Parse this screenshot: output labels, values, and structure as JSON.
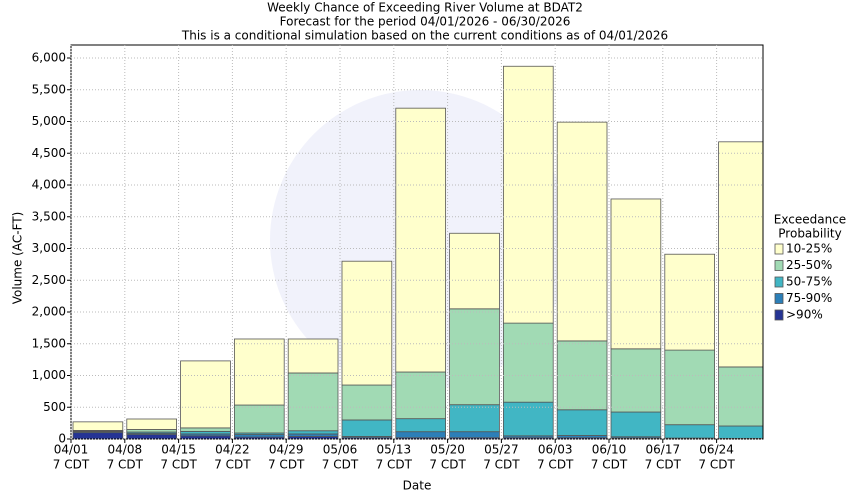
{
  "chart_data": {
    "type": "stacked-bar",
    "title": [
      "Weekly Chance of Exceeding River Volume at BDAT2",
      "Forecast for the period 04/01/2026 - 06/30/2026",
      "This is a conditional simulation based on the current conditions as of 04/01/2026"
    ],
    "x_label": "Date",
    "y_label": "Volume (AC-FT)",
    "categories": [
      "04/01",
      "04/08",
      "04/15",
      "04/22",
      "04/29",
      "05/06",
      "05/13",
      "05/20",
      "05/27",
      "06/03",
      "06/10",
      "06/17",
      "06/24"
    ],
    "category_times": [
      "7 CDT",
      "7 CDT",
      "7 CDT",
      "7 CDT",
      "7 CDT",
      "7 CDT",
      "7 CDT",
      "7 CDT",
      "7 CDT",
      "7 CDT",
      "7 CDT",
      "7 CDT",
      "7 CDT"
    ],
    "legend_title": [
      "Exceedance",
      "Probability"
    ],
    "series": [
      {
        "name": "10-25%",
        "color": "#ffffcc",
        "values": [
          135,
          165,
          1055,
          1040,
          535,
          1950,
          4155,
          1190,
          4045,
          3445,
          2360,
          1510,
          3545
        ]
      },
      {
        "name": "25-50%",
        "color": "#a1dab4",
        "values": [
          10,
          40,
          55,
          440,
          910,
          550,
          735,
          1510,
          1245,
          1085,
          995,
          1175,
          930
        ]
      },
      {
        "name": "50-75%",
        "color": "#41b6c4",
        "values": [
          10,
          20,
          40,
          25,
          50,
          260,
          205,
          425,
          530,
          405,
          390,
          210,
          195
        ]
      },
      {
        "name": "75-90%",
        "color": "#2c7fb8",
        "values": [
          15,
          20,
          30,
          40,
          40,
          20,
          95,
          95,
          30,
          35,
          20,
          10,
          5
        ]
      },
      {
        "name": ">90%",
        "color": "#253494",
        "values": [
          100,
          70,
          50,
          30,
          40,
          20,
          20,
          20,
          20,
          20,
          15,
          5,
          5
        ]
      }
    ],
    "ylim": [
      0,
      6000
    ],
    "yticks": [
      0,
      500,
      {
        "value": 1000,
        "label": "1,000"
      },
      {
        "value": 1500,
        "label": "1,500"
      },
      {
        "value": 2000,
        "label": "2,000"
      },
      {
        "value": 2500,
        "label": "2,500"
      },
      {
        "value": 3000,
        "label": "3,000"
      },
      {
        "value": 3500,
        "label": "3,500"
      },
      {
        "value": 4000,
        "label": "4,000"
      },
      {
        "value": 4500,
        "label": "4,500"
      },
      {
        "value": 5000,
        "label": "5,000"
      },
      {
        "value": 5500,
        "label": "5,500"
      },
      {
        "value": 6000,
        "label": "6,000"
      }
    ],
    "grid": true
  }
}
